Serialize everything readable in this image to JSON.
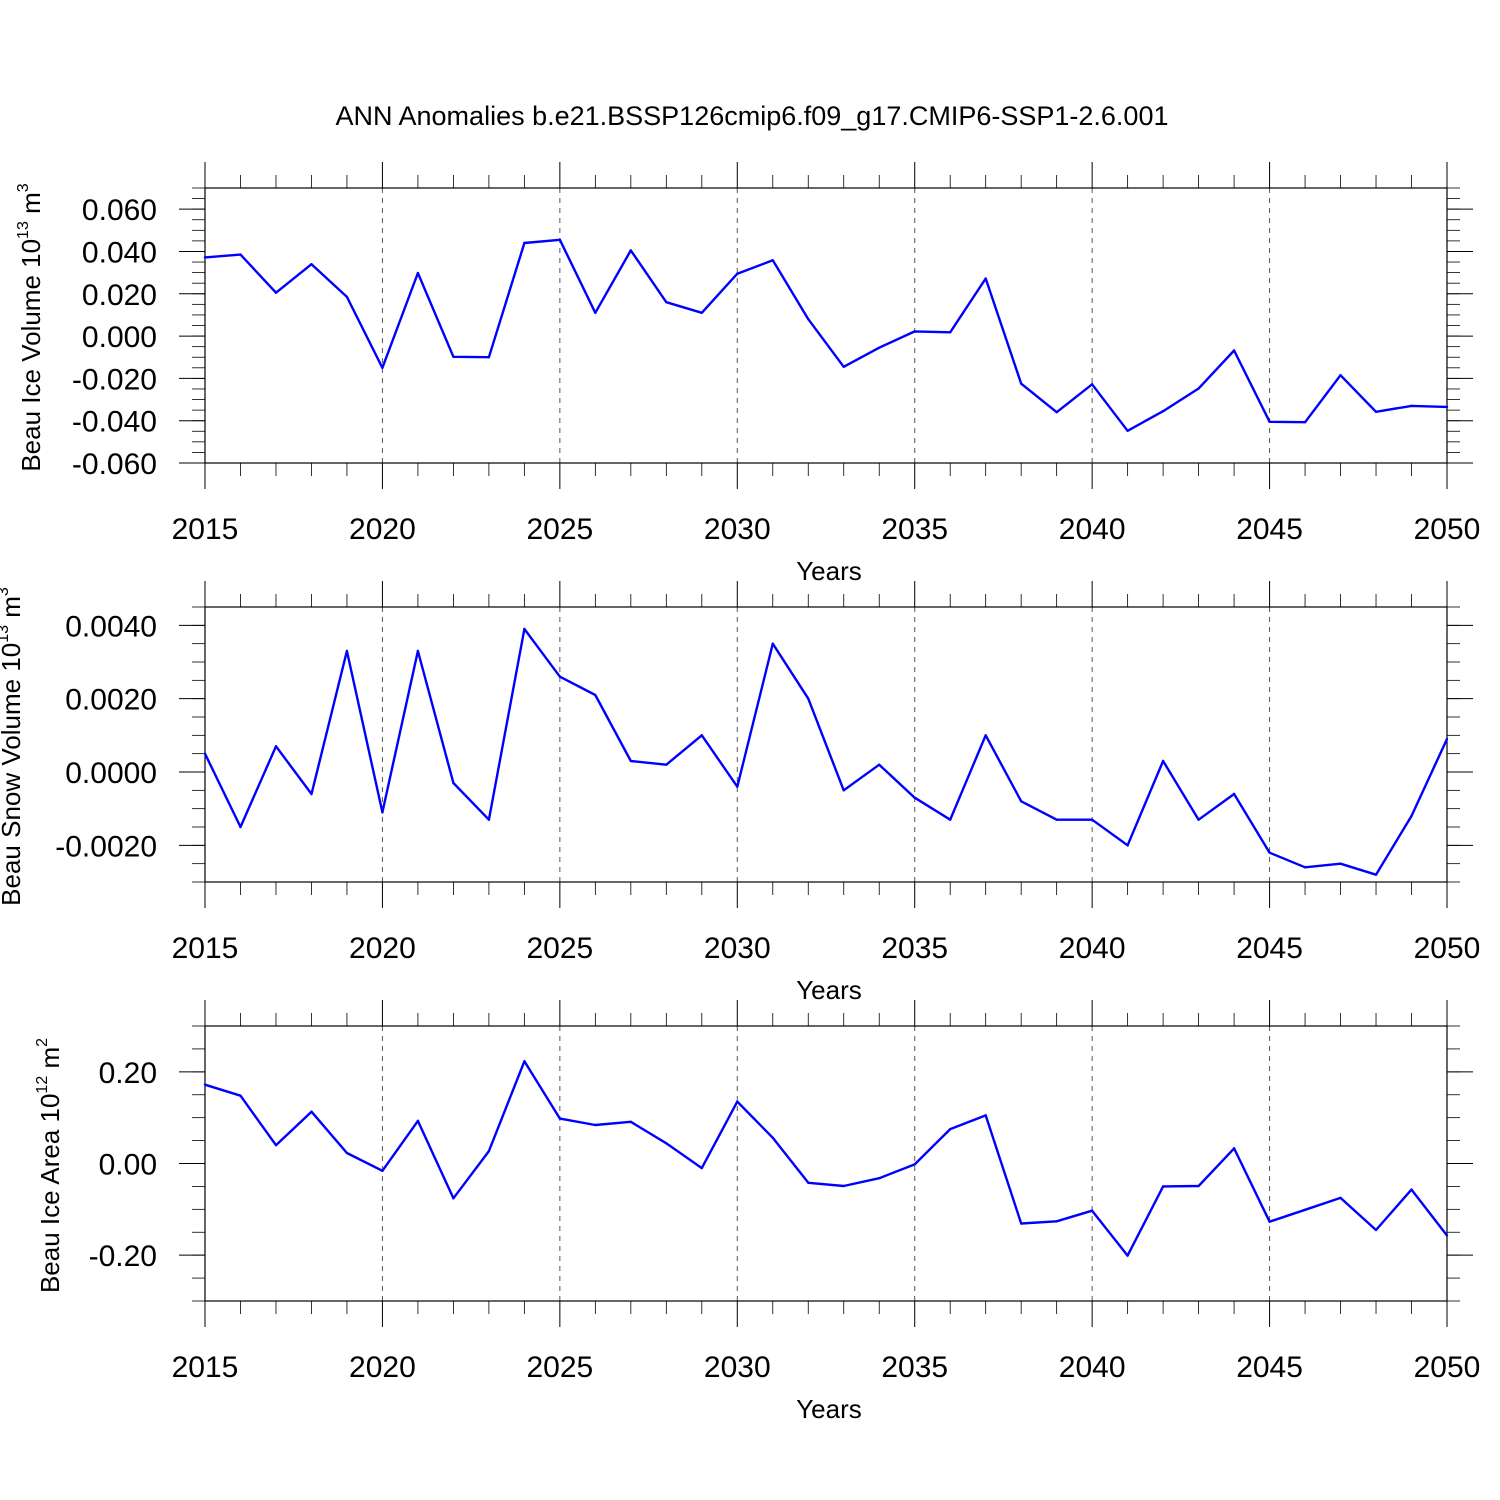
{
  "title": "ANN Anomalies b.e21.BSSP126cmip6.f09_g17.CMIP6-SSP1-2.6.001",
  "colors": {
    "line": "#0000ff",
    "axis": "#000000",
    "grid": "#555555"
  },
  "chart_data": [
    {
      "type": "line",
      "ylabel": "Beau Ice Volume 10",
      "ylabel_exp": "13",
      "ylabel_unit": " m",
      "ylabel_unit_exp": "3",
      "xlabel": "Years",
      "xlim": [
        2015,
        2050
      ],
      "ylim": [
        -0.06,
        0.07
      ],
      "y_ticks": [
        -0.06,
        -0.04,
        -0.02,
        0.0,
        0.02,
        0.04,
        0.06
      ],
      "y_tick_labels": [
        "-0.060",
        "-0.040",
        "-0.020",
        "0.000",
        "0.020",
        "0.040",
        "0.060"
      ],
      "y_minor_step": 0.005,
      "x_ticks": [
        2015,
        2020,
        2025,
        2030,
        2035,
        2040,
        2045,
        2050
      ],
      "x_tick_labels": [
        "2015",
        "2020",
        "2025",
        "2030",
        "2035",
        "2040",
        "2045",
        "2050"
      ],
      "grid_x": [
        2020,
        2025,
        2030,
        2035,
        2040,
        2045
      ],
      "x": [
        2015,
        2016,
        2017,
        2018,
        2019,
        2020,
        2021,
        2022,
        2023,
        2024,
        2025,
        2026,
        2027,
        2028,
        2029,
        2030,
        2031,
        2032,
        2033,
        2034,
        2035,
        2036,
        2037,
        2038,
        2039,
        2040,
        2041,
        2042,
        2043,
        2044,
        2045,
        2046,
        2047,
        2048,
        2049,
        2050
      ],
      "values": [
        0.0372,
        0.0385,
        0.0205,
        0.034,
        0.0185,
        -0.015,
        0.0298,
        -0.0098,
        -0.01,
        0.044,
        0.0455,
        0.011,
        0.0405,
        0.016,
        0.011,
        0.0295,
        0.0358,
        0.008,
        -0.0145,
        -0.0055,
        0.0022,
        0.0018,
        0.0272,
        -0.0225,
        -0.036,
        -0.0228,
        -0.0448,
        -0.0355,
        -0.0248,
        -0.0068,
        -0.0405,
        -0.0407,
        -0.0185,
        -0.0358,
        -0.033,
        -0.0335
      ]
    },
    {
      "type": "line",
      "ylabel": "Beau Snow Volume 10",
      "ylabel_exp": "13",
      "ylabel_unit": " m",
      "ylabel_unit_exp": "3",
      "xlabel": "Years",
      "xlim": [
        2015,
        2050
      ],
      "ylim": [
        -0.003,
        0.0045
      ],
      "y_ticks": [
        -0.002,
        0.0,
        0.002,
        0.004
      ],
      "y_tick_labels": [
        "-0.0020",
        "0.0000",
        "0.0020",
        "0.0040"
      ],
      "y_minor_step": 0.0005,
      "x_ticks": [
        2015,
        2020,
        2025,
        2030,
        2035,
        2040,
        2045,
        2050
      ],
      "x_tick_labels": [
        "2015",
        "2020",
        "2025",
        "2030",
        "2035",
        "2040",
        "2045",
        "2050"
      ],
      "grid_x": [
        2020,
        2025,
        2030,
        2035,
        2040,
        2045
      ],
      "x": [
        2015,
        2016,
        2017,
        2018,
        2019,
        2020,
        2021,
        2022,
        2023,
        2024,
        2025,
        2026,
        2027,
        2028,
        2029,
        2030,
        2031,
        2032,
        2033,
        2034,
        2035,
        2036,
        2037,
        2038,
        2039,
        2040,
        2041,
        2042,
        2043,
        2044,
        2045,
        2046,
        2047,
        2048,
        2049,
        2050
      ],
      "values": [
        0.0005,
        -0.0015,
        0.0007,
        -0.0006,
        0.0033,
        -0.0011,
        0.0033,
        -0.0003,
        -0.0013,
        0.0039,
        0.0026,
        0.0021,
        0.0003,
        0.0002,
        0.001,
        -0.0004,
        0.0035,
        0.002,
        -0.0005,
        0.0002,
        -0.0007,
        -0.0013,
        0.001,
        -0.0008,
        -0.0013,
        -0.0013,
        -0.002,
        0.0003,
        -0.0013,
        -0.0006,
        -0.0022,
        -0.0026,
        -0.0025,
        -0.0028,
        -0.0012,
        0.0009
      ]
    },
    {
      "type": "line",
      "ylabel": "Beau Ice Area 10",
      "ylabel_exp": "12",
      "ylabel_unit": " m",
      "ylabel_unit_exp": "2",
      "xlabel": "Years",
      "xlim": [
        2015,
        2050
      ],
      "ylim": [
        -0.3,
        0.3
      ],
      "y_ticks": [
        -0.2,
        0.0,
        0.2
      ],
      "y_tick_labels": [
        "-0.20",
        "0.00",
        "0.20"
      ],
      "y_minor_step": 0.05,
      "x_ticks": [
        2015,
        2020,
        2025,
        2030,
        2035,
        2040,
        2045,
        2050
      ],
      "x_tick_labels": [
        "2015",
        "2020",
        "2025",
        "2030",
        "2035",
        "2040",
        "2045",
        "2050"
      ],
      "grid_x": [
        2020,
        2025,
        2030,
        2035,
        2040,
        2045
      ],
      "x": [
        2015,
        2016,
        2017,
        2018,
        2019,
        2020,
        2021,
        2022,
        2023,
        2024,
        2025,
        2026,
        2027,
        2028,
        2029,
        2030,
        2031,
        2032,
        2033,
        2034,
        2035,
        2036,
        2037,
        2038,
        2039,
        2040,
        2041,
        2042,
        2043,
        2044,
        2045,
        2046,
        2047,
        2048,
        2049,
        2050
      ],
      "values": [
        0.172,
        0.148,
        0.04,
        0.113,
        0.023,
        -0.016,
        0.093,
        -0.076,
        0.027,
        0.223,
        0.098,
        0.084,
        0.091,
        0.044,
        -0.01,
        0.135,
        0.056,
        -0.042,
        -0.049,
        -0.032,
        -0.002,
        0.075,
        0.105,
        -0.131,
        -0.126,
        -0.103,
        -0.201,
        -0.05,
        -0.049,
        0.033,
        -0.127,
        -0.101,
        -0.075,
        -0.145,
        -0.057,
        -0.157
      ]
    }
  ]
}
